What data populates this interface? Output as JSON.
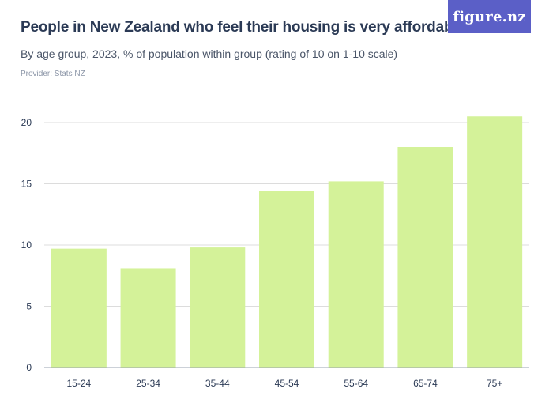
{
  "header": {
    "title": "People in New Zealand who feel their housing is very affordable",
    "subtitle": "By age group, 2023, % of population within group (rating of 10 on 1-10 scale)",
    "provider": "Provider: Stats NZ",
    "logo_text": "figure.nz"
  },
  "colors": {
    "bar": "#d4f299",
    "grid": "#dcdcdc",
    "axis_text": "#2b3a55",
    "brand": "#5b5fc7"
  },
  "chart_data": {
    "type": "bar",
    "title": "People in New Zealand who feel their housing is very affordable",
    "subtitle": "By age group, 2023, % of population within group (rating of 10 on 1-10 scale)",
    "xlabel": "",
    "ylabel": "",
    "categories": [
      "15-24",
      "25-34",
      "35-44",
      "45-54",
      "55-64",
      "65-74",
      "75+"
    ],
    "values": [
      9.7,
      8.1,
      9.8,
      14.4,
      15.2,
      18.0,
      20.5
    ],
    "ylim": [
      0,
      20
    ],
    "yticks": [
      0,
      5,
      10,
      15,
      20
    ],
    "grid": true,
    "legend": "none"
  }
}
